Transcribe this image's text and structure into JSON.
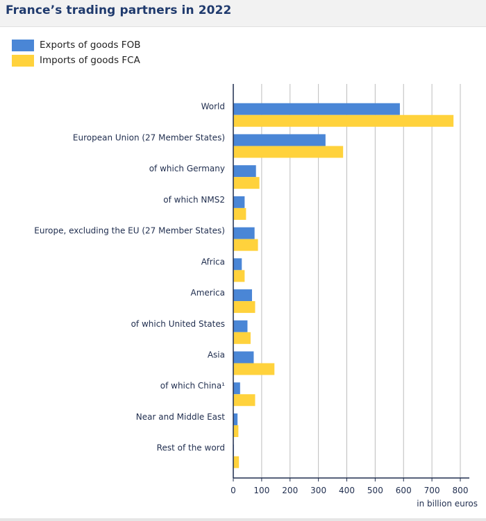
{
  "title": "France’s trading partners in 2022",
  "legend": [
    {
      "label": "Exports of goods FOB",
      "color": "#4a86d6"
    },
    {
      "label": "Imports of goods FCA",
      "color": "#ffd23c"
    }
  ],
  "chart_data": {
    "type": "bar",
    "orientation": "horizontal",
    "title": "France’s trading partners in 2022",
    "categories": [
      "World",
      "European Union (27 Member States)",
      "of which Germany",
      "of which NMS2",
      "Europe, excluding the EU (27 Member States)",
      "Africa",
      "America",
      "of which United States",
      "Asia",
      "of which China¹",
      "Near and Middle East",
      "Rest of the word"
    ],
    "series": [
      {
        "name": "Exports of goods FOB",
        "color": "#4a86d6",
        "values": [
          587,
          325,
          80,
          40,
          75,
          30,
          66,
          50,
          72,
          24,
          15,
          2
        ]
      },
      {
        "name": "Imports of goods FCA",
        "color": "#ffd23c",
        "values": [
          776,
          387,
          92,
          45,
          87,
          40,
          77,
          61,
          145,
          77,
          18,
          20
        ]
      }
    ],
    "xlabel": "in billion euros",
    "ylabel": "",
    "xlim": [
      0,
      800
    ],
    "xticks": [
      "0",
      "100",
      "200",
      "300",
      "400",
      "500",
      "600",
      "700",
      "800"
    ],
    "grid": true
  }
}
